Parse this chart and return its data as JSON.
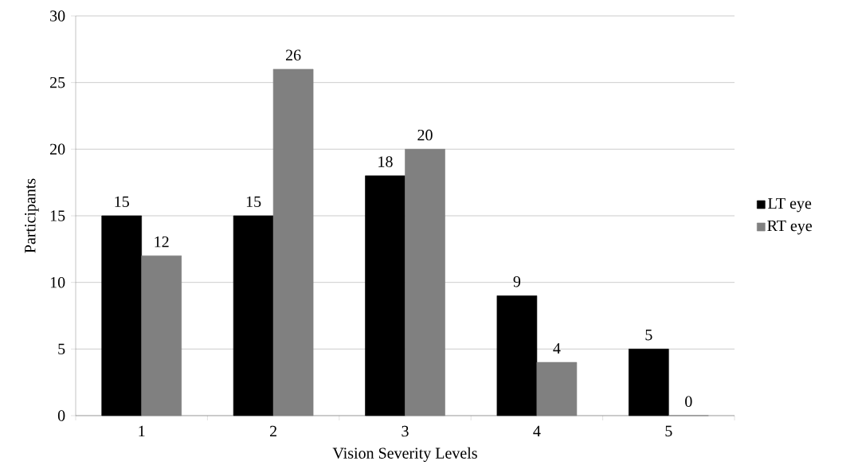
{
  "chart_data": {
    "type": "bar",
    "xlabel": "Vision Severity Levels",
    "ylabel": "Participants",
    "categories": [
      "1",
      "2",
      "3",
      "4",
      "5"
    ],
    "series": [
      {
        "name": "LT eye",
        "color": "#000000",
        "values": [
          15,
          15,
          18,
          9,
          5
        ]
      },
      {
        "name": "RT eye",
        "color": "#808080",
        "values": [
          12,
          26,
          20,
          4,
          0
        ]
      }
    ],
    "ylim": [
      0,
      30
    ],
    "yticks": [
      0,
      5,
      10,
      15,
      20,
      25,
      30
    ],
    "grid": "y",
    "legend": "right",
    "data_labels": true
  }
}
